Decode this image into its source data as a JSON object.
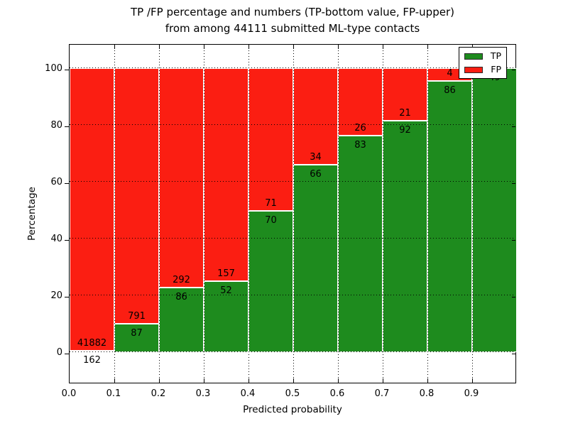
{
  "chart_data": {
    "type": "bar",
    "stacked": true,
    "title_line1": "TP /FP percentage and numbers (TP-bottom value, FP-upper)",
    "title_line2": "from among 44111 submitted ML-type contacts",
    "xlabel": "Predicted probability",
    "ylabel": "Percentage",
    "total_contacts": 44111,
    "x_tick_labels": [
      "0.0",
      "0.1",
      "0.2",
      "0.3",
      "0.4",
      "0.5",
      "0.6",
      "0.7",
      "0.8",
      "0.9"
    ],
    "y_tick_values": [
      0,
      20,
      40,
      60,
      80,
      100
    ],
    "xlim": [
      0.0,
      1.0
    ],
    "ylim": [
      -10.75,
      108.75
    ],
    "grid_style": "dotted",
    "colors": {
      "tp": "#1e8b1e",
      "fp": "#fb1e12",
      "label_text": "#000000",
      "axes": "#000000"
    },
    "legend": {
      "position": "upper-right",
      "entries": [
        {
          "label": "TP",
          "color": "#1e8b1e"
        },
        {
          "label": "FP",
          "color": "#fb1e12"
        }
      ]
    },
    "bars": [
      {
        "bin": "0.0-0.1",
        "tp_count": 162,
        "fp_count": 41882,
        "tp_pct": 0.39,
        "fp_label_visible": true
      },
      {
        "bin": "0.1-0.2",
        "tp_count": 87,
        "fp_count": 791,
        "tp_pct": 9.91,
        "fp_label_visible": true
      },
      {
        "bin": "0.2-0.3",
        "tp_count": 86,
        "fp_count": 292,
        "tp_pct": 22.75,
        "fp_label_visible": true
      },
      {
        "bin": "0.3-0.4",
        "tp_count": 52,
        "fp_count": 157,
        "tp_pct": 24.88,
        "fp_label_visible": true
      },
      {
        "bin": "0.4-0.5",
        "tp_count": 70,
        "fp_count": 71,
        "tp_pct": 49.65,
        "fp_label_visible": true
      },
      {
        "bin": "0.5-0.6",
        "tp_count": 66,
        "fp_count": 34,
        "tp_pct": 66.0,
        "fp_label_visible": true
      },
      {
        "bin": "0.6-0.7",
        "tp_count": 83,
        "fp_count": 26,
        "tp_pct": 76.15,
        "fp_label_visible": true
      },
      {
        "bin": "0.7-0.8",
        "tp_count": 92,
        "fp_count": 21,
        "tp_pct": 81.42,
        "fp_label_visible": true
      },
      {
        "bin": "0.8-0.9",
        "tp_count": 86,
        "fp_count": 4,
        "tp_pct": 95.56,
        "fp_label_visible": true
      },
      {
        "bin": "0.9-1.0",
        "tp_count": 49,
        "fp_count": 0,
        "tp_pct": 100.0,
        "fp_label_visible": false
      }
    ]
  }
}
